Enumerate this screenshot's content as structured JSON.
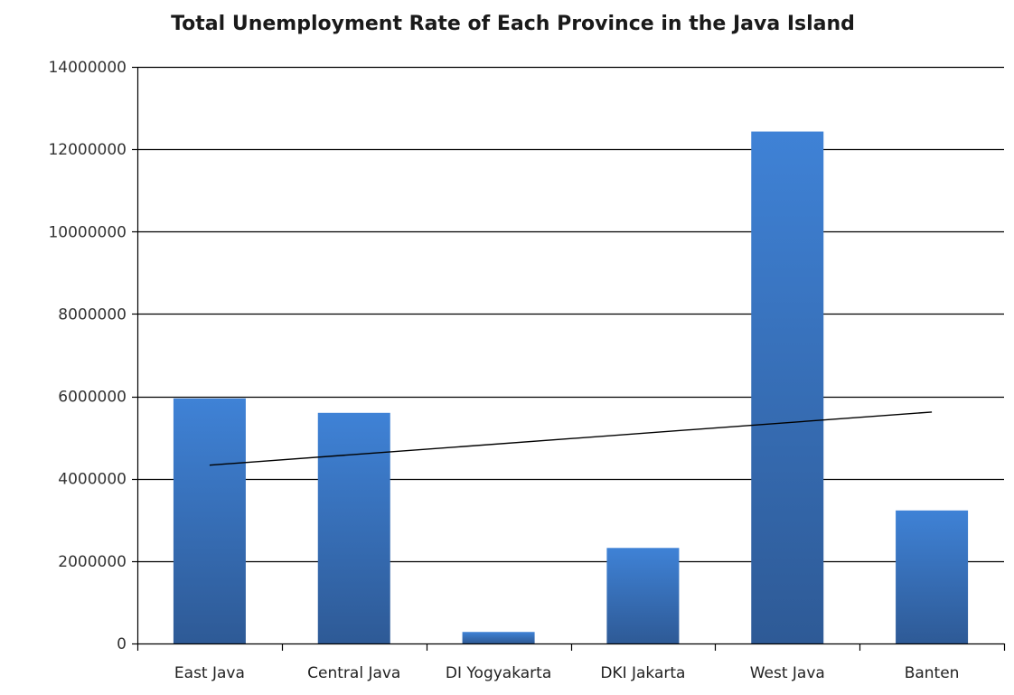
{
  "chart_data": {
    "type": "bar",
    "title": "Total Unemployment Rate of Each Province in the Java Island",
    "xlabel": "",
    "ylabel": "",
    "categories": [
      "East Java",
      "Central Java",
      "DI Yogyakarta",
      "DKI Jakarta",
      "West Java",
      "Banten"
    ],
    "values": [
      5950000,
      5600000,
      280000,
      2320000,
      12430000,
      3230000
    ],
    "ylim": [
      0,
      14000000
    ],
    "yticks": [
      "0",
      "2000000",
      "4000000",
      "6000000",
      "8000000",
      "10000000",
      "12000000",
      "14000000"
    ],
    "ytick_values": [
      0,
      2000000,
      4000000,
      6000000,
      8000000,
      10000000,
      12000000,
      14000000
    ],
    "trendline": {
      "type": "linear",
      "start": 4330000,
      "end": 5620000
    },
    "grid": true,
    "legend": "none",
    "colors": {
      "bar_top": "#3f82d6",
      "bar_bottom": "#2e5a96",
      "grid": "#000000",
      "trend": "#000000"
    }
  }
}
